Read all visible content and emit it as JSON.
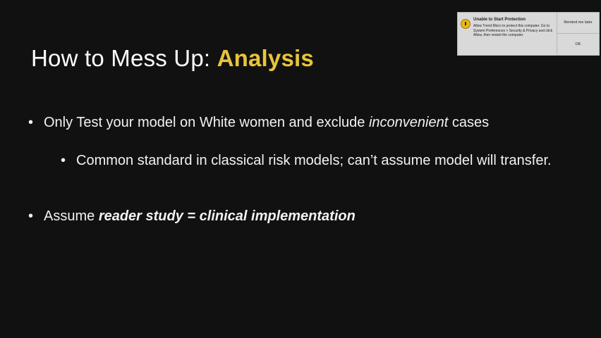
{
  "slide": {
    "title_prefix": "How to Mess Up: ",
    "title_accent": "Analysis",
    "accent_color": "#e8c43c",
    "bullets": [
      {
        "marker": "•",
        "text_before": "Only Test your model on White women and exclude ",
        "text_italic": "inconvenient",
        "text_after": " cases"
      },
      {
        "marker": "•",
        "text": "Common standard in classical risk models; can’t assume model will transfer."
      },
      {
        "marker": "•",
        "text_before": "Assume ",
        "text_bold_italic": "reader study = clinical implementation"
      }
    ]
  },
  "notification": {
    "icon": "warning-icon",
    "title": "Unable to Start Protection",
    "body": "Allow Trend Micro to protect this computer. Go to System Preferences > Security & Privacy and click Allow, then restart the computer.",
    "buttons": {
      "remind": "Remind me later",
      "ok": "OK"
    }
  }
}
